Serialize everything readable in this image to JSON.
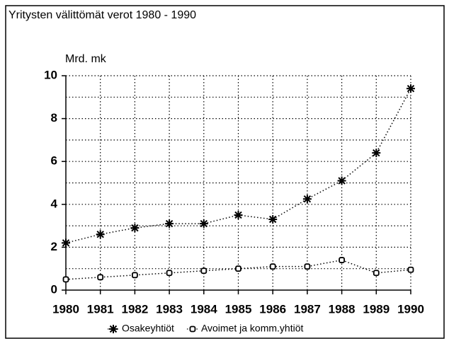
{
  "chart_data": {
    "type": "line",
    "title": "Yritysten välittömät verot 1980 - 1990",
    "y_label": "Mrd. mk",
    "x": [
      "1980",
      "1981",
      "1982",
      "1983",
      "1984",
      "1985",
      "1986",
      "1987",
      "1988",
      "1989",
      "1990"
    ],
    "series": [
      {
        "name": "Osakeyhtiöt",
        "color": "#000000",
        "marker": "star",
        "values": [
          2.2,
          2.6,
          2.9,
          3.1,
          3.1,
          3.5,
          3.3,
          4.25,
          5.1,
          6.4,
          9.4
        ]
      },
      {
        "name": "Avoimet ja komm.yhtiöt",
        "color": "#000000",
        "marker": "square",
        "values": [
          0.5,
          0.6,
          0.7,
          0.8,
          0.9,
          1.0,
          1.1,
          1.1,
          1.4,
          0.8,
          0.95
        ]
      }
    ],
    "ylim": [
      0,
      10
    ],
    "yticks": [
      0,
      2,
      4,
      6,
      8,
      10
    ],
    "ygrid": [
      1,
      2,
      3,
      4,
      5,
      6,
      7,
      8,
      9,
      10
    ],
    "grid": true,
    "legend": "bottom"
  }
}
